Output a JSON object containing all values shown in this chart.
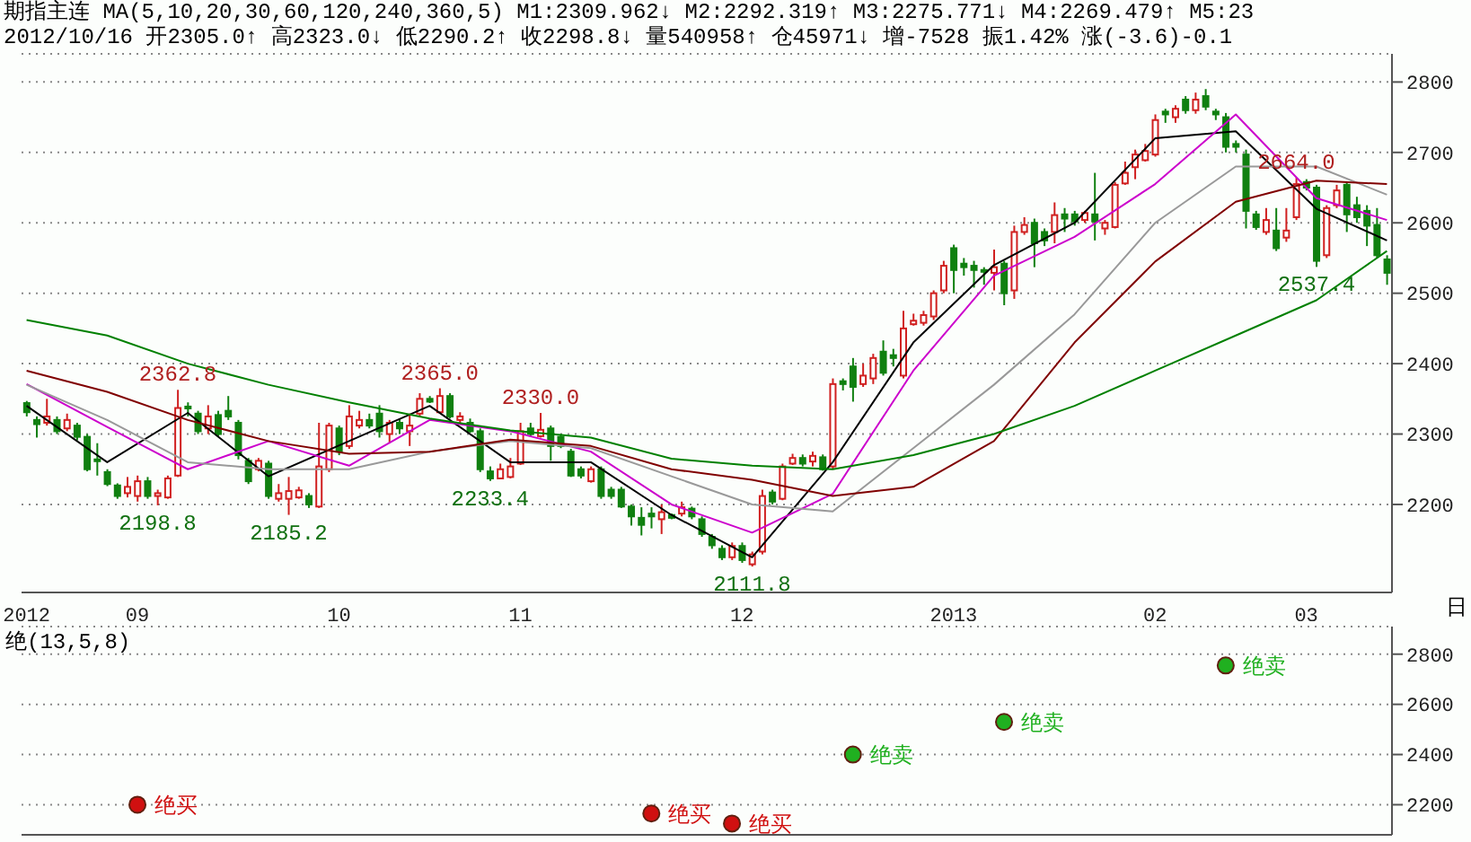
{
  "chart_data": [
    {
      "type": "candlestick",
      "title": "期指主连 MA(5,10,20,30,60,120,240,360,5) M1:2309.962↓ M2:2292.319↑ M3:2275.771↓ M4:2269.479↑ M5:23",
      "subtitle": "2012/10/16 开2305.0↑ 高2323.0↓ 低2290.2↑ 收2298.8↓ 量540958↑ 仓45971↓ 增-7528 振1.42% 涨(-3.6)-0.1",
      "categories": [
        "2012",
        null,
        null,
        null,
        null,
        null,
        null,
        null,
        null,
        null,
        null,
        "09",
        null,
        null,
        null,
        null,
        null,
        null,
        null,
        null,
        null,
        null,
        null,
        null,
        null,
        null,
        null,
        null,
        null,
        null,
        null,
        "10",
        null,
        null,
        null,
        null,
        null,
        null,
        null,
        null,
        null,
        null,
        null,
        null,
        null,
        null,
        null,
        null,
        null,
        "11",
        null,
        null,
        null,
        null,
        null,
        null,
        null,
        null,
        null,
        null,
        null,
        null,
        null,
        null,
        null,
        null,
        null,
        null,
        null,
        null,
        null,
        "12",
        null,
        null,
        null,
        null,
        null,
        null,
        null,
        null,
        null,
        null,
        null,
        null,
        null,
        null,
        null,
        null,
        null,
        null,
        null,
        null,
        "2013",
        null,
        null,
        null,
        null,
        null,
        null,
        null,
        null,
        null,
        null,
        null,
        null,
        null,
        null,
        null,
        null,
        null,
        null,
        null,
        "02",
        null,
        null,
        null,
        null,
        null,
        null,
        null,
        null,
        null,
        null,
        null,
        null,
        null,
        null,
        "03",
        null,
        null,
        null,
        null,
        null,
        null,
        null,
        null
      ],
      "ohlc": [
        [
          2344,
          2347,
          2325,
          2331
        ],
        [
          2320,
          2325,
          2295,
          2314
        ],
        [
          2316,
          2350,
          2312,
          2325
        ],
        [
          2320,
          2325,
          2300,
          2304
        ],
        [
          2308,
          2329,
          2304,
          2320
        ],
        [
          2312,
          2316,
          2291,
          2296
        ],
        [
          2296,
          2300,
          2247,
          2250
        ],
        [
          2264,
          2287,
          2241,
          2262
        ],
        [
          2246,
          2250,
          2226,
          2229
        ],
        [
          2227,
          2230,
          2208,
          2212
        ],
        [
          2216,
          2239,
          2210,
          2225
        ],
        [
          2212,
          2241,
          2204,
          2233
        ],
        [
          2233,
          2239,
          2208,
          2212
        ],
        [
          2212,
          2221,
          2198.8,
          2216
        ],
        [
          2210,
          2241,
          2208,
          2237
        ],
        [
          2241,
          2362.8,
          2239,
          2337
        ],
        [
          2339,
          2345,
          2325,
          2337
        ],
        [
          2329,
          2333,
          2300,
          2304
        ],
        [
          2308,
          2341,
          2300,
          2325
        ],
        [
          2327,
          2333,
          2297,
          2300
        ],
        [
          2333,
          2354,
          2320,
          2325
        ],
        [
          2316,
          2320,
          2264,
          2270
        ],
        [
          2262,
          2266,
          2229,
          2233
        ],
        [
          2250,
          2266,
          2247,
          2262
        ],
        [
          2258,
          2262,
          2208,
          2212
        ],
        [
          2208,
          2229,
          2204,
          2216
        ],
        [
          2208,
          2239,
          2185.2,
          2219
        ],
        [
          2210,
          2225,
          2208,
          2220
        ],
        [
          2212,
          2216,
          2195,
          2200
        ],
        [
          2197,
          2316,
          2195,
          2254
        ],
        [
          2250,
          2316,
          2246,
          2312
        ],
        [
          2308,
          2312,
          2270,
          2275
        ],
        [
          2283,
          2341,
          2279,
          2325
        ],
        [
          2312,
          2333,
          2308,
          2320
        ],
        [
          2320,
          2329,
          2308,
          2312
        ],
        [
          2329,
          2341,
          2295,
          2304
        ],
        [
          2300,
          2320,
          2287,
          2316
        ],
        [
          2316,
          2322,
          2300,
          2308
        ],
        [
          2304,
          2329,
          2283,
          2312
        ],
        [
          2329,
          2358,
          2325,
          2350
        ],
        [
          2350,
          2354,
          2344,
          2346
        ],
        [
          2331,
          2365.0,
          2329,
          2354
        ],
        [
          2354,
          2358,
          2322,
          2325
        ],
        [
          2320,
          2331,
          2316,
          2325
        ],
        [
          2316,
          2322,
          2302,
          2304
        ],
        [
          2304,
          2308,
          2246,
          2250
        ],
        [
          2247,
          2254,
          2233.4,
          2237
        ],
        [
          2237,
          2258,
          2236,
          2250
        ],
        [
          2239,
          2266,
          2237,
          2254
        ],
        [
          2258,
          2316,
          2256,
          2304
        ],
        [
          2308,
          2316,
          2296,
          2300
        ],
        [
          2297,
          2330.0,
          2295,
          2306
        ],
        [
          2308,
          2312,
          2262,
          2283
        ],
        [
          2296,
          2300,
          2280,
          2283
        ],
        [
          2275,
          2279,
          2239,
          2241
        ],
        [
          2250,
          2254,
          2237,
          2241
        ],
        [
          2233,
          2254,
          2231,
          2250
        ],
        [
          2250,
          2254,
          2208,
          2212
        ],
        [
          2221,
          2225,
          2208,
          2212
        ],
        [
          2221,
          2225,
          2195,
          2197
        ],
        [
          2197,
          2200,
          2170,
          2183
        ],
        [
          2181,
          2196,
          2156,
          2171
        ],
        [
          2187,
          2196,
          2166,
          2183
        ],
        [
          2179,
          2200,
          2158,
          2189
        ],
        [
          2185,
          2187,
          2179,
          2181
        ],
        [
          2187,
          2204,
          2183,
          2196
        ],
        [
          2194,
          2197,
          2179,
          2183
        ],
        [
          2179,
          2183,
          2154,
          2158
        ],
        [
          2154,
          2158,
          2137,
          2142
        ],
        [
          2137,
          2142,
          2121,
          2125
        ],
        [
          2125,
          2146,
          2121,
          2141
        ],
        [
          2141,
          2146,
          2117,
          2121
        ],
        [
          2115,
          2133,
          2111.8,
          2129
        ],
        [
          2133,
          2221,
          2129,
          2212
        ],
        [
          2217,
          2221,
          2200,
          2204
        ],
        [
          2208,
          2258,
          2206,
          2254
        ],
        [
          2258,
          2272,
          2256,
          2266
        ],
        [
          2266,
          2271,
          2254,
          2258
        ],
        [
          2261,
          2275,
          2254,
          2269
        ],
        [
          2267,
          2271,
          2248,
          2250
        ],
        [
          2254,
          2379,
          2250,
          2371
        ],
        [
          2375,
          2379,
          2362,
          2371
        ],
        [
          2396,
          2408,
          2346,
          2367
        ],
        [
          2371,
          2400,
          2367,
          2383
        ],
        [
          2379,
          2414,
          2371,
          2408
        ],
        [
          2417,
          2433,
          2383,
          2387
        ],
        [
          2412,
          2421,
          2396,
          2408
        ],
        [
          2383,
          2475,
          2379,
          2450
        ],
        [
          2456,
          2471,
          2454,
          2461
        ],
        [
          2458,
          2475,
          2454,
          2469
        ],
        [
          2467,
          2504,
          2462,
          2500
        ],
        [
          2504,
          2546,
          2500,
          2539
        ],
        [
          2564,
          2569,
          2500,
          2533
        ],
        [
          2542,
          2550,
          2525,
          2537
        ],
        [
          2539,
          2546,
          2508,
          2533
        ],
        [
          2533,
          2537,
          2512,
          2531
        ],
        [
          2529,
          2562,
          2504,
          2537
        ],
        [
          2542,
          2546,
          2483,
          2500
        ],
        [
          2504,
          2596,
          2492,
          2587
        ],
        [
          2587,
          2608,
          2583,
          2597
        ],
        [
          2600,
          2606,
          2537,
          2571
        ],
        [
          2587,
          2592,
          2567,
          2575
        ],
        [
          2587,
          2629,
          2571,
          2611
        ],
        [
          2612,
          2621,
          2587,
          2606
        ],
        [
          2612,
          2617,
          2596,
          2602
        ],
        [
          2604,
          2617,
          2600,
          2614
        ],
        [
          2612,
          2671,
          2575,
          2602
        ],
        [
          2592,
          2604,
          2583,
          2600
        ],
        [
          2594,
          2658,
          2592,
          2654
        ],
        [
          2656,
          2687,
          2654,
          2671
        ],
        [
          2679,
          2704,
          2662,
          2697
        ],
        [
          2689,
          2712,
          2687,
          2702
        ],
        [
          2697,
          2754,
          2694,
          2746
        ],
        [
          2758,
          2762,
          2742,
          2754
        ],
        [
          2750,
          2767,
          2742,
          2762
        ],
        [
          2775,
          2780,
          2755,
          2760
        ],
        [
          2760,
          2785,
          2755,
          2775
        ],
        [
          2780,
          2790,
          2760,
          2765
        ],
        [
          2758,
          2762,
          2746,
          2754
        ],
        [
          2750,
          2756,
          2700,
          2708
        ],
        [
          2712,
          2717,
          2700,
          2708
        ],
        [
          2697,
          2704,
          2592,
          2617
        ],
        [
          2612,
          2617,
          2590,
          2594
        ],
        [
          2587,
          2621,
          2583,
          2604
        ],
        [
          2589,
          2621,
          2560,
          2564
        ],
        [
          2579,
          2621,
          2573,
          2589
        ],
        [
          2608,
          2664.0,
          2604,
          2655
        ],
        [
          2658,
          2662,
          2646,
          2650
        ],
        [
          2650,
          2654,
          2537.4,
          2546
        ],
        [
          2554,
          2625,
          2550,
          2621
        ],
        [
          2625,
          2654,
          2621,
          2646
        ],
        [
          2654,
          2658,
          2587,
          2612
        ],
        [
          2625,
          2637,
          2600,
          2608
        ],
        [
          2617,
          2625,
          2567,
          2596
        ],
        [
          2597,
          2621,
          2550,
          2554
        ],
        [
          2548,
          2554,
          2512,
          2529
        ]
      ],
      "series": [
        {
          "type": "line",
          "color": "#000000",
          "values": [
            2340,
            null,
            null,
            null,
            null,
            null,
            null,
            null,
            2260,
            null,
            null,
            null,
            null,
            null,
            null,
            null,
            2330,
            null,
            null,
            null,
            null,
            null,
            null,
            null,
            2240,
            null,
            null,
            null,
            null,
            null,
            null,
            null,
            2290,
            null,
            null,
            null,
            null,
            null,
            null,
            null,
            2340,
            null,
            null,
            null,
            null,
            null,
            null,
            null,
            2260,
            null,
            null,
            null,
            null,
            null,
            null,
            null,
            2260,
            null,
            null,
            null,
            null,
            null,
            null,
            null,
            2185,
            null,
            null,
            null,
            null,
            null,
            null,
            null,
            2125,
            null,
            null,
            null,
            null,
            null,
            null,
            null,
            2260,
            null,
            null,
            null,
            null,
            null,
            null,
            null,
            2430,
            null,
            null,
            null,
            null,
            null,
            null,
            null,
            2540,
            null,
            null,
            null,
            null,
            null,
            null,
            null,
            2600,
            null,
            null,
            null,
            null,
            null,
            null,
            null,
            2720,
            null,
            null,
            null,
            null,
            null,
            null,
            null,
            2730,
            null,
            null,
            null,
            null,
            null,
            null,
            null,
            2620,
            null,
            null,
            null,
            null,
            null,
            null,
            2575
          ]
        },
        {
          "type": "line",
          "color": "#cc00cc",
          "values": [
            2371,
            null,
            null,
            null,
            null,
            null,
            null,
            null,
            2310,
            null,
            null,
            null,
            null,
            null,
            null,
            null,
            2250,
            null,
            null,
            null,
            null,
            null,
            null,
            null,
            2290,
            null,
            null,
            null,
            null,
            null,
            null,
            null,
            2255,
            null,
            null,
            null,
            null,
            null,
            null,
            null,
            2320,
            null,
            null,
            null,
            null,
            null,
            null,
            null,
            2304,
            null,
            null,
            null,
            null,
            null,
            null,
            null,
            2275,
            null,
            null,
            null,
            null,
            null,
            null,
            null,
            2200,
            null,
            null,
            null,
            null,
            null,
            null,
            null,
            2160,
            null,
            null,
            null,
            null,
            null,
            null,
            null,
            2215,
            null,
            null,
            null,
            null,
            null,
            null,
            null,
            2390,
            null,
            null,
            null,
            null,
            null,
            null,
            null,
            2525,
            null,
            null,
            null,
            null,
            null,
            null,
            null,
            2580,
            null,
            null,
            null,
            null,
            null,
            null,
            null,
            2655,
            null,
            null,
            null,
            null,
            null,
            null,
            null,
            2754,
            null,
            null,
            null,
            null,
            null,
            null,
            null,
            2635,
            null,
            null,
            null,
            null,
            null,
            null,
            2604
          ]
        },
        {
          "type": "line",
          "color": "#999999",
          "values": [
            2370,
            null,
            null,
            null,
            null,
            null,
            null,
            null,
            2320,
            null,
            null,
            null,
            null,
            null,
            null,
            null,
            2260,
            null,
            null,
            null,
            null,
            null,
            null,
            null,
            2250,
            null,
            null,
            null,
            null,
            null,
            null,
            null,
            2250,
            null,
            null,
            null,
            null,
            null,
            null,
            null,
            2275,
            null,
            null,
            null,
            null,
            null,
            null,
            null,
            2290,
            null,
            null,
            null,
            null,
            null,
            null,
            null,
            2280,
            null,
            null,
            null,
            null,
            null,
            null,
            null,
            2240,
            null,
            null,
            null,
            null,
            null,
            null,
            null,
            2200,
            null,
            null,
            null,
            null,
            null,
            null,
            null,
            2190,
            null,
            null,
            null,
            null,
            null,
            null,
            null,
            2280,
            null,
            null,
            null,
            null,
            null,
            null,
            null,
            2370,
            null,
            null,
            null,
            null,
            null,
            null,
            null,
            2470,
            null,
            null,
            null,
            null,
            null,
            null,
            null,
            2600,
            null,
            null,
            null,
            null,
            null,
            null,
            null,
            2680,
            null,
            null,
            null,
            null,
            null,
            null,
            null,
            2680,
            null,
            null,
            null,
            null,
            null,
            null,
            2640
          ]
        },
        {
          "type": "line",
          "color": "#800000",
          "values": [
            2390,
            null,
            null,
            null,
            null,
            null,
            null,
            null,
            2360,
            null,
            null,
            null,
            null,
            null,
            null,
            null,
            2320,
            null,
            null,
            null,
            null,
            null,
            null,
            null,
            2290,
            null,
            null,
            null,
            null,
            null,
            null,
            null,
            2272,
            null,
            null,
            null,
            null,
            null,
            null,
            null,
            2275,
            null,
            null,
            null,
            null,
            null,
            null,
            null,
            2292,
            null,
            null,
            null,
            null,
            null,
            null,
            null,
            2283,
            null,
            null,
            null,
            null,
            null,
            null,
            null,
            2250,
            null,
            null,
            null,
            null,
            null,
            null,
            null,
            2235,
            null,
            null,
            null,
            null,
            null,
            null,
            null,
            2212,
            null,
            null,
            null,
            null,
            null,
            null,
            null,
            2225,
            null,
            null,
            null,
            null,
            null,
            null,
            null,
            2290,
            null,
            null,
            null,
            null,
            null,
            null,
            null,
            2430,
            null,
            null,
            null,
            null,
            null,
            null,
            null,
            2545,
            null,
            null,
            null,
            null,
            null,
            null,
            null,
            2630,
            null,
            null,
            null,
            null,
            null,
            null,
            null,
            2660,
            null,
            null,
            null,
            null,
            null,
            null,
            2655
          ]
        },
        {
          "type": "line",
          "color": "#008000",
          "values": [
            2462,
            null,
            null,
            null,
            null,
            null,
            null,
            null,
            2440,
            null,
            null,
            null,
            null,
            null,
            null,
            null,
            2400,
            null,
            null,
            null,
            null,
            null,
            null,
            null,
            2370,
            null,
            null,
            null,
            null,
            null,
            null,
            null,
            2345,
            null,
            null,
            null,
            null,
            null,
            null,
            null,
            2322,
            null,
            null,
            null,
            null,
            null,
            null,
            null,
            2305,
            null,
            null,
            null,
            null,
            null,
            null,
            null,
            2295,
            null,
            null,
            null,
            null,
            null,
            null,
            null,
            2265,
            null,
            null,
            null,
            null,
            null,
            null,
            null,
            2255,
            null,
            null,
            null,
            null,
            null,
            null,
            null,
            2250,
            null,
            null,
            null,
            null,
            null,
            null,
            null,
            2270,
            null,
            null,
            null,
            null,
            null,
            null,
            null,
            2300,
            null,
            null,
            null,
            null,
            null,
            null,
            null,
            2340,
            null,
            null,
            null,
            null,
            null,
            null,
            null,
            2390,
            null,
            null,
            null,
            null,
            null,
            null,
            null,
            2440,
            null,
            null,
            null,
            null,
            null,
            null,
            null,
            2490,
            null,
            null,
            null,
            null,
            null,
            null,
            2560
          ]
        }
      ],
      "ylim": [
        2075,
        2840
      ],
      "yticks": [
        2200,
        2300,
        2400,
        2500,
        2600,
        2700,
        2800
      ],
      "grid": "y",
      "annotations": [
        {
          "text": "2362.8",
          "y": 2362.8
        },
        {
          "text": "2198.8",
          "y": 2198.8
        },
        {
          "text": "2185.2",
          "y": 2185.2
        },
        {
          "text": "2365.0",
          "y": 2365.0
        },
        {
          "text": "2233.4",
          "y": 2233.4
        },
        {
          "text": "2330.0",
          "y": 2330.0
        },
        {
          "text": "2111.8",
          "y": 2111.8
        },
        {
          "text": "2664.0",
          "y": 2664.0
        },
        {
          "text": "2537.4",
          "y": 2537.4
        },
        "日"
      ]
    },
    {
      "type": "scatter",
      "title": "绝(13,5,8)",
      "categories": [
        "2012",
        null,
        null,
        null,
        null,
        null,
        null,
        null,
        null,
        null,
        null,
        "09",
        null,
        null,
        null,
        null,
        null,
        null,
        null,
        null,
        null,
        null,
        null,
        null,
        null,
        null,
        null,
        null,
        null,
        null,
        null,
        "10",
        null,
        null,
        null,
        null,
        null,
        null,
        null,
        null,
        null,
        null,
        null,
        null,
        null,
        null,
        null,
        null,
        null,
        "11",
        null,
        null,
        null,
        null,
        null,
        null,
        null,
        null,
        null,
        null,
        null,
        null,
        null,
        null,
        null,
        null,
        null,
        null,
        null,
        null,
        null,
        "12",
        null,
        null,
        null,
        null,
        null,
        null,
        null,
        null,
        null,
        null,
        null,
        null,
        null,
        null,
        null,
        null,
        null,
        null,
        null,
        null,
        "2013",
        null,
        null,
        null,
        null,
        null,
        null,
        null,
        null,
        null,
        null,
        null,
        null,
        null,
        null,
        null,
        null,
        null,
        null,
        null,
        "02",
        null,
        null,
        null,
        null,
        null,
        null,
        null,
        null,
        null,
        null,
        null,
        null,
        null,
        null,
        "03",
        null,
        null,
        null,
        null,
        null,
        null,
        null,
        null
      ],
      "series": [
        {
          "name": "绝买",
          "color": "#d01010",
          "values": [
            null,
            null,
            null,
            null,
            null,
            null,
            null,
            null,
            null,
            null,
            null,
            2200,
            null,
            null,
            null,
            null,
            null,
            null,
            null,
            null,
            null,
            null,
            null,
            null,
            null,
            null,
            null,
            null,
            null,
            null,
            null,
            null,
            null,
            null,
            null,
            null,
            null,
            null,
            null,
            null,
            null,
            null,
            null,
            null,
            null,
            null,
            null,
            null,
            null,
            null,
            null,
            null,
            null,
            null,
            null,
            null,
            null,
            null,
            null,
            null,
            null,
            null,
            2165,
            null,
            null,
            null,
            null,
            null,
            null,
            null,
            2125,
            null,
            null,
            null,
            null,
            null,
            null,
            null,
            null,
            null,
            null,
            null,
            null,
            null,
            null,
            null,
            null,
            null,
            null,
            null,
            null,
            null,
            null,
            null,
            null,
            null,
            null,
            null,
            null,
            null,
            null,
            null,
            null,
            null,
            null,
            null,
            null,
            null,
            null,
            null,
            null,
            null,
            null,
            null,
            null,
            null,
            null,
            null,
            null,
            null,
            null,
            null,
            null,
            null,
            null,
            null,
            null,
            null,
            null,
            null,
            null,
            null,
            null,
            null,
            null,
            null
          ]
        },
        {
          "name": "绝卖",
          "color": "#20b020",
          "values": [
            null,
            null,
            null,
            null,
            null,
            null,
            null,
            null,
            null,
            null,
            null,
            null,
            null,
            null,
            null,
            null,
            null,
            null,
            null,
            null,
            null,
            null,
            null,
            null,
            null,
            null,
            null,
            null,
            null,
            null,
            null,
            null,
            null,
            null,
            null,
            null,
            null,
            null,
            null,
            null,
            null,
            null,
            null,
            null,
            null,
            null,
            null,
            null,
            null,
            null,
            null,
            null,
            null,
            null,
            null,
            null,
            null,
            null,
            null,
            null,
            null,
            null,
            null,
            null,
            null,
            null,
            null,
            null,
            null,
            null,
            null,
            null,
            null,
            null,
            null,
            null,
            null,
            null,
            null,
            null,
            null,
            null,
            2400,
            null,
            null,
            null,
            null,
            null,
            null,
            null,
            null,
            null,
            null,
            null,
            null,
            null,
            null,
            2530,
            null,
            null,
            null,
            null,
            null,
            null,
            null,
            null,
            null,
            null,
            null,
            null,
            null,
            null,
            null,
            null,
            null,
            null,
            null,
            null,
            null,
            2755,
            null,
            null,
            null,
            null,
            null,
            null,
            null,
            null,
            null,
            null,
            null,
            null,
            null,
            null,
            null,
            null
          ]
        }
      ],
      "ylim": [
        2080,
        2910
      ],
      "yticks": [
        2200,
        2400,
        2600,
        2800
      ],
      "grid": "y",
      "tick_labels": "y",
      "marker": "circle"
    }
  ]
}
